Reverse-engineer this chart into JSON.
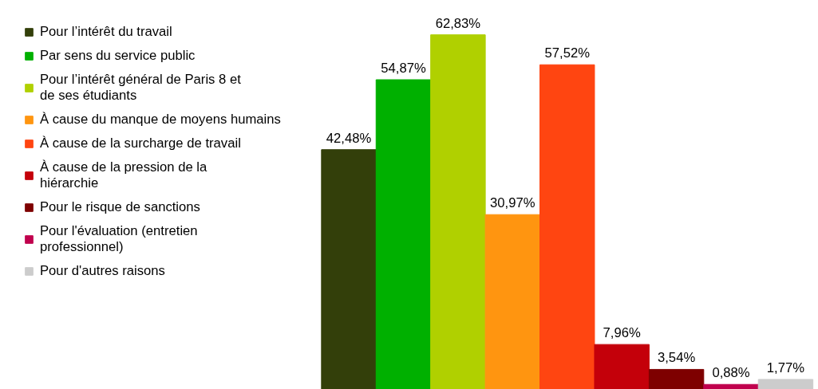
{
  "chart_data": {
    "type": "bar",
    "categories": [
      null
    ],
    "series": [
      {
        "name": "Pour l’intérêt du travail",
        "color": "#333f0a",
        "values": [
          42.48
        ],
        "value_labels": [
          "42,48%"
        ]
      },
      {
        "name": "Par sens du service public",
        "color": "#00b000",
        "values": [
          54.87
        ],
        "value_labels": [
          "54,87%"
        ]
      },
      {
        "name": "Pour l’intérêt général de Paris 8 et de ses étudiants",
        "color": "#b0d000",
        "values": [
          62.83
        ],
        "value_labels": [
          "62,83%"
        ]
      },
      {
        "name": "À cause du manque de moyens humains",
        "color": "#ff9510",
        "values": [
          30.97
        ],
        "value_labels": [
          "30,97%"
        ]
      },
      {
        "name": "À cause de la surcharge de travail",
        "color": "#ff4511",
        "values": [
          57.52
        ],
        "value_labels": [
          "57,52%"
        ]
      },
      {
        "name": "À cause de la pression de la hiérarchie",
        "color": "#c4000a",
        "values": [
          7.96
        ],
        "value_labels": [
          "7,96%"
        ]
      },
      {
        "name": "Pour le risque de sanctions",
        "color": "#7e0000",
        "values": [
          3.54
        ],
        "value_labels": [
          "3,54%"
        ]
      },
      {
        "name": "Pour l'évaluation (entretien professionnel)",
        "color": "#c0004d",
        "values": [
          0.88
        ],
        "value_labels": [
          "0,88%"
        ]
      },
      {
        "name": "Pour d'autres raisons",
        "color": "#cccccc",
        "values": [
          1.77
        ],
        "value_labels": [
          "1,77%"
        ]
      }
    ],
    "legend": "left"
  }
}
